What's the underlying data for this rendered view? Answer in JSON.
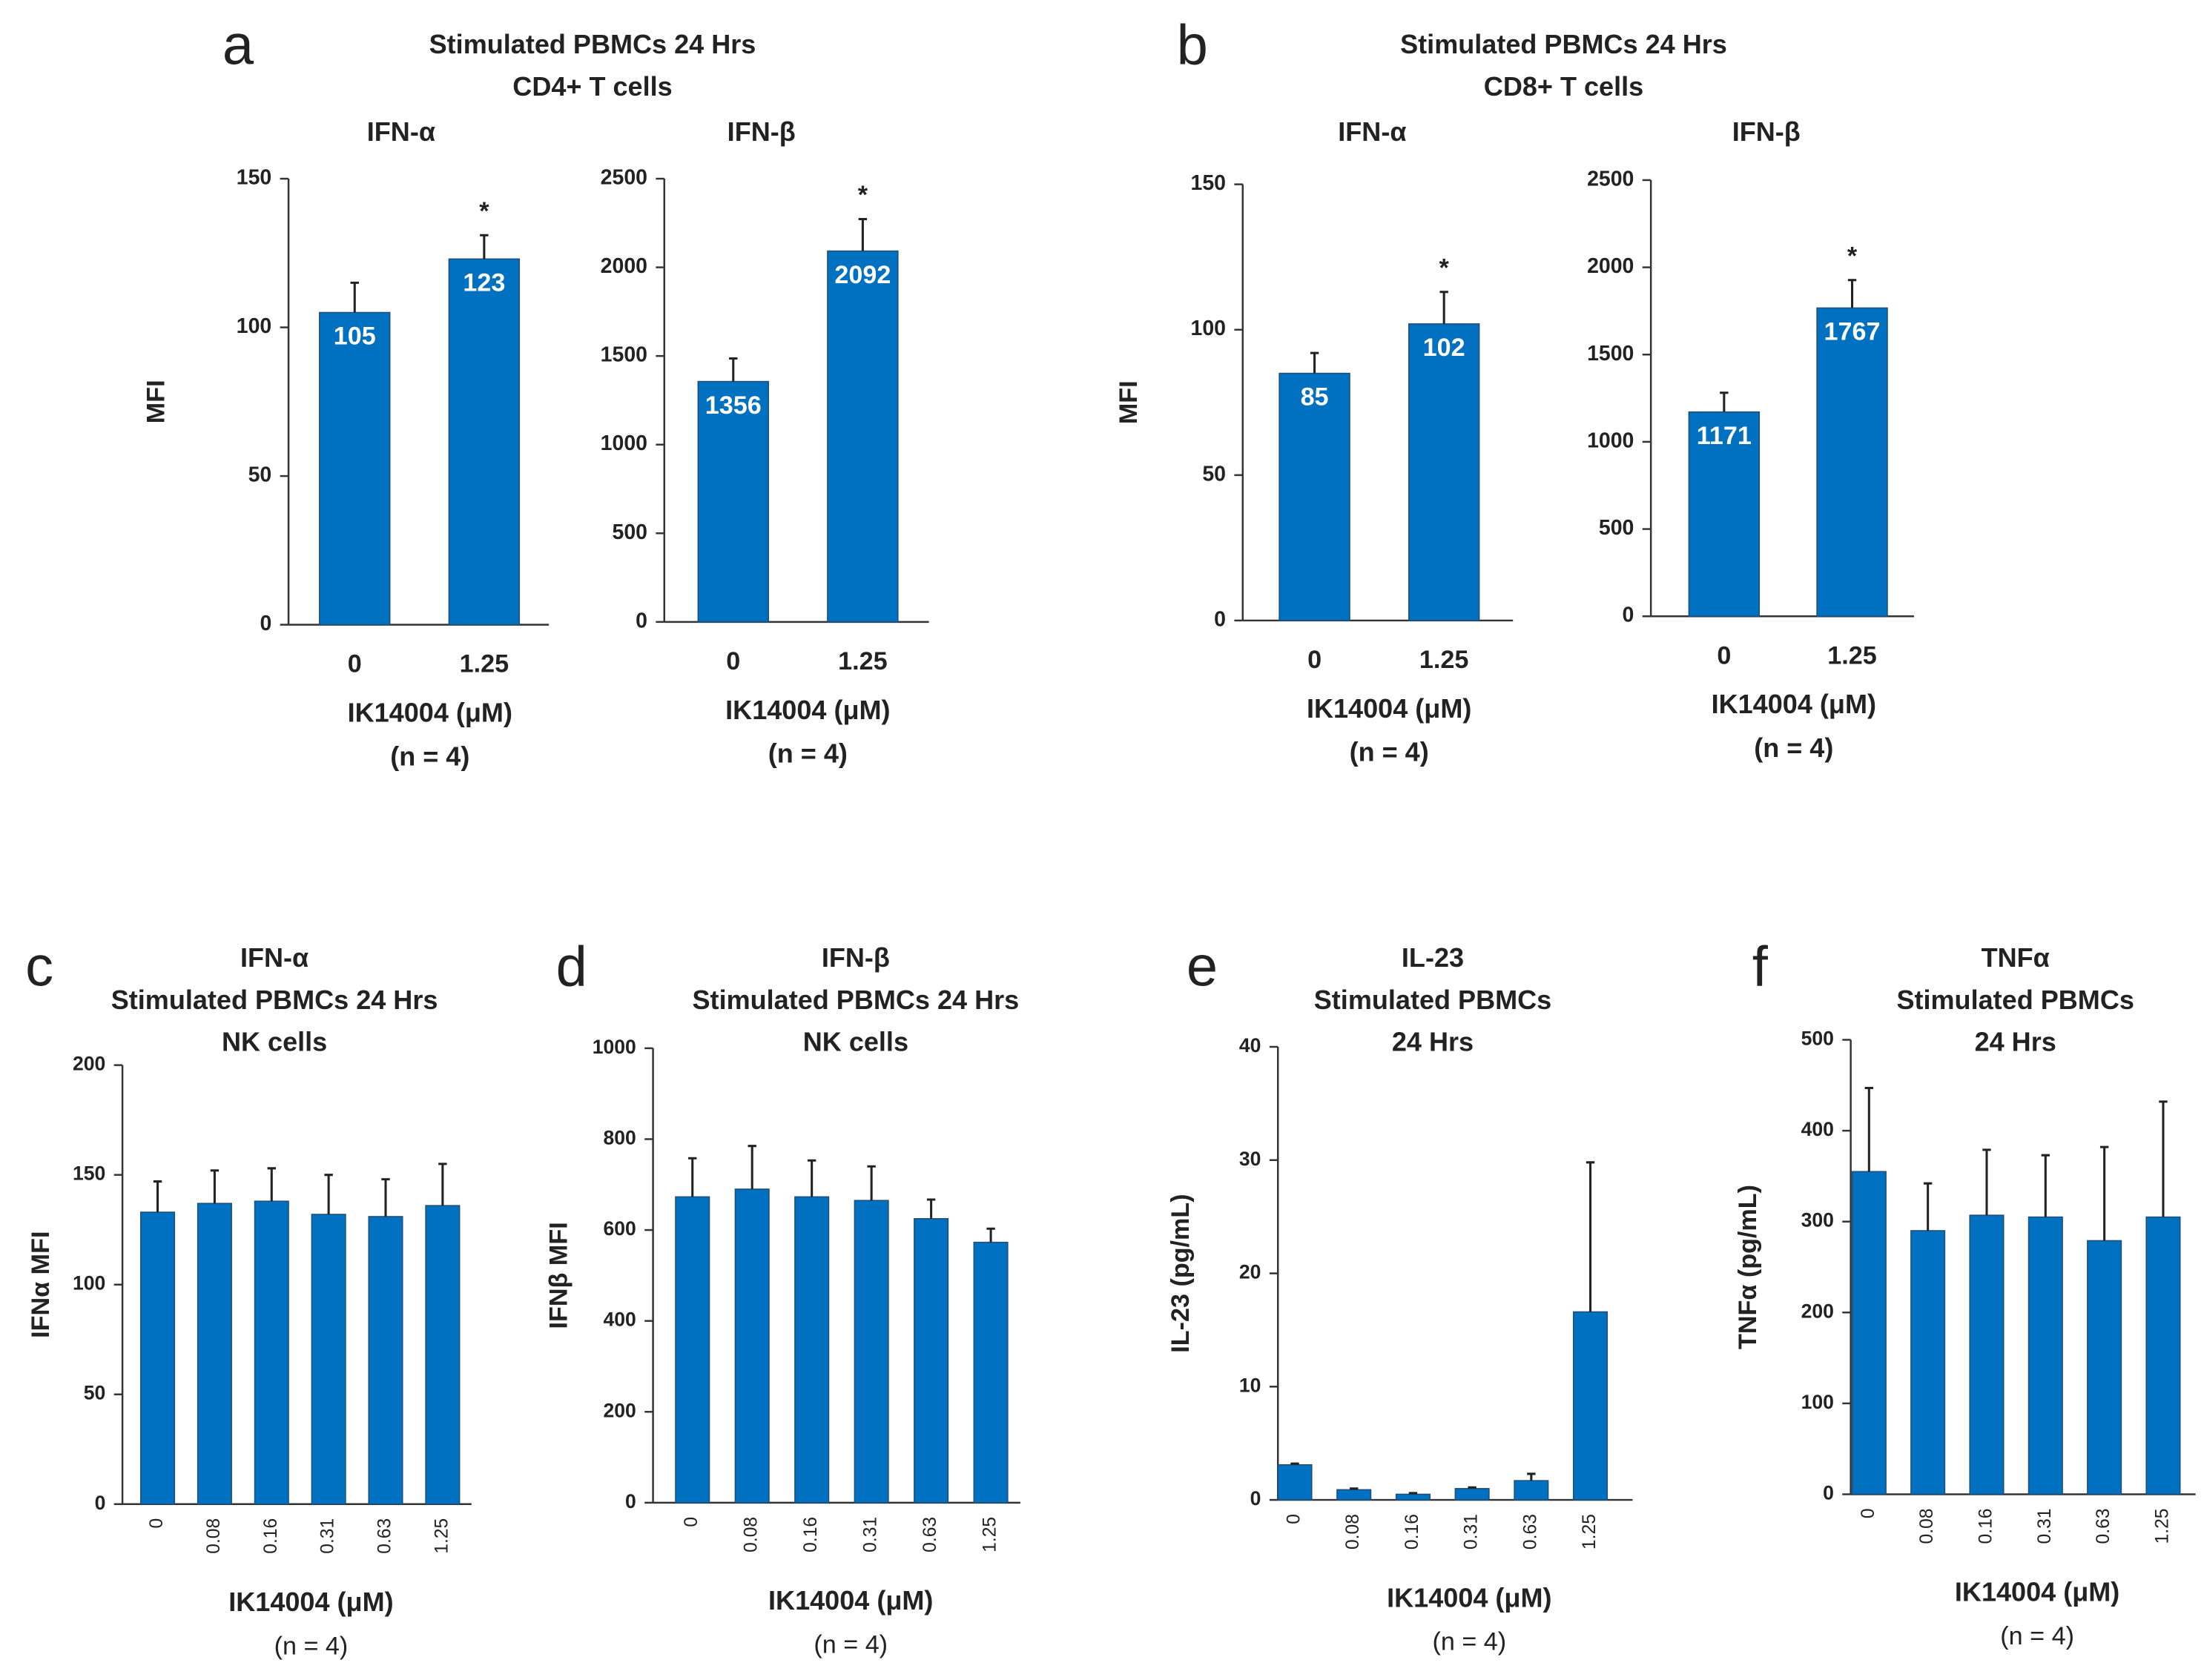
{
  "chart_data": [
    {
      "type": "bar",
      "panel": "a",
      "group_title": [
        "Stimulated PBMCs 24 Hrs",
        "CD4+ T cells"
      ],
      "title": [
        "IFN-α"
      ],
      "ylabel": "MFI",
      "xlabel": "IK14004 (μM)",
      "note": "(n = 4)",
      "categories": [
        "0",
        "1.25"
      ],
      "values": [
        105,
        123
      ],
      "errors": [
        10,
        8
      ],
      "annotations": [
        null,
        "*"
      ],
      "color": "#0070c0",
      "ylim": [
        0,
        150
      ],
      "yticks": [
        0,
        50,
        100,
        150
      ],
      "show_value_labels": true
    },
    {
      "type": "bar",
      "title": [
        "IFN-β"
      ],
      "xlabel": "IK14004 (μM)",
      "note": "(n = 4)",
      "categories": [
        "0",
        "1.25"
      ],
      "values": [
        1356,
        2092
      ],
      "errors": [
        130,
        180
      ],
      "annotations": [
        null,
        "*"
      ],
      "color": "#0070c0",
      "ylim": [
        0,
        2500
      ],
      "yticks": [
        0,
        500,
        1000,
        1500,
        2000,
        2500
      ],
      "show_value_labels": true
    },
    {
      "type": "bar",
      "panel": "b",
      "group_title": [
        "Stimulated PBMCs 24 Hrs",
        "CD8+ T cells"
      ],
      "title": [
        "IFN-α"
      ],
      "ylabel": "MFI",
      "xlabel": "IK14004 (μM)",
      "note": "(n = 4)",
      "categories": [
        "0",
        "1.25"
      ],
      "values": [
        85,
        102
      ],
      "errors": [
        7,
        11
      ],
      "annotations": [
        null,
        "*"
      ],
      "color": "#0070c0",
      "ylim": [
        0,
        150
      ],
      "yticks": [
        0,
        50,
        100,
        150
      ],
      "show_value_labels": true
    },
    {
      "type": "bar",
      "title": [
        "IFN-β"
      ],
      "xlabel": "IK14004 (μM)",
      "note": "(n = 4)",
      "categories": [
        "0",
        "1.25"
      ],
      "values": [
        1171,
        1767
      ],
      "errors": [
        110,
        160
      ],
      "annotations": [
        null,
        "*"
      ],
      "color": "#0070c0",
      "ylim": [
        0,
        2500
      ],
      "yticks": [
        0,
        500,
        1000,
        1500,
        2000,
        2500
      ],
      "show_value_labels": true
    },
    {
      "type": "bar",
      "panel": "c",
      "title": [
        "IFN-α",
        "Stimulated PBMCs 24 Hrs",
        "NK cells"
      ],
      "ylabel": "IFNα MFI",
      "xlabel": "IK14004 (μM)",
      "note": "(n = 4)",
      "categories": [
        "0",
        "0.08",
        "0.16",
        "0.31",
        "0.63",
        "1.25"
      ],
      "values": [
        133,
        137,
        138,
        132,
        131,
        136
      ],
      "errors": [
        14,
        15,
        15,
        18,
        17,
        19
      ],
      "color": "#0070c0",
      "ylim": [
        0,
        200
      ],
      "yticks": [
        0,
        50,
        100,
        150,
        200
      ],
      "show_value_labels": false
    },
    {
      "type": "bar",
      "panel": "d",
      "title": [
        "IFN-β",
        "Stimulated PBMCs 24 Hrs",
        "NK cells"
      ],
      "ylabel": "IFNβ MFI",
      "xlabel": "IK14004 (μM)",
      "note": "(n = 4)",
      "categories": [
        "0",
        "0.08",
        "0.16",
        "0.31",
        "0.63",
        "1.25"
      ],
      "values": [
        673,
        690,
        673,
        665,
        625,
        573
      ],
      "errors": [
        85,
        95,
        80,
        75,
        42,
        30
      ],
      "color": "#0070c0",
      "ylim": [
        0,
        1000
      ],
      "yticks": [
        0,
        200,
        400,
        600,
        800,
        1000
      ],
      "show_value_labels": false
    },
    {
      "type": "bar",
      "panel": "e",
      "title": [
        "IL-23",
        "Stimulated PBMCs",
        "24 Hrs"
      ],
      "ylabel": "IL-23 (pg/mL)",
      "xlabel": "IK14004 (μM)",
      "note": "(n = 4)",
      "categories": [
        "0",
        "0.08",
        "0.16",
        "0.31",
        "0.63",
        "1.25"
      ],
      "values": [
        3.1,
        0.9,
        0.5,
        1.0,
        1.7,
        16.6
      ],
      "errors": [
        0.1,
        0.1,
        0.1,
        0.1,
        0.6,
        13.2
      ],
      "color": "#0070c0",
      "ylim": [
        0,
        40
      ],
      "yticks": [
        0,
        10,
        20,
        30,
        40
      ],
      "show_value_labels": false
    },
    {
      "type": "bar",
      "panel": "f",
      "title": [
        "TNFα",
        "Stimulated PBMCs",
        "24 Hrs"
      ],
      "ylabel": "TNFα (pg/mL)",
      "xlabel": "IK14004 (μM)",
      "note": "(n = 4)",
      "categories": [
        "0",
        "0.08",
        "0.16",
        "0.31",
        "0.63",
        "1.25"
      ],
      "values": [
        355,
        290,
        307,
        305,
        279,
        305
      ],
      "errors": [
        92,
        52,
        72,
        68,
        103,
        127
      ],
      "color": "#0070c0",
      "ylim": [
        0,
        500
      ],
      "yticks": [
        0,
        100,
        200,
        300,
        400,
        500
      ],
      "show_value_labels": false
    }
  ]
}
